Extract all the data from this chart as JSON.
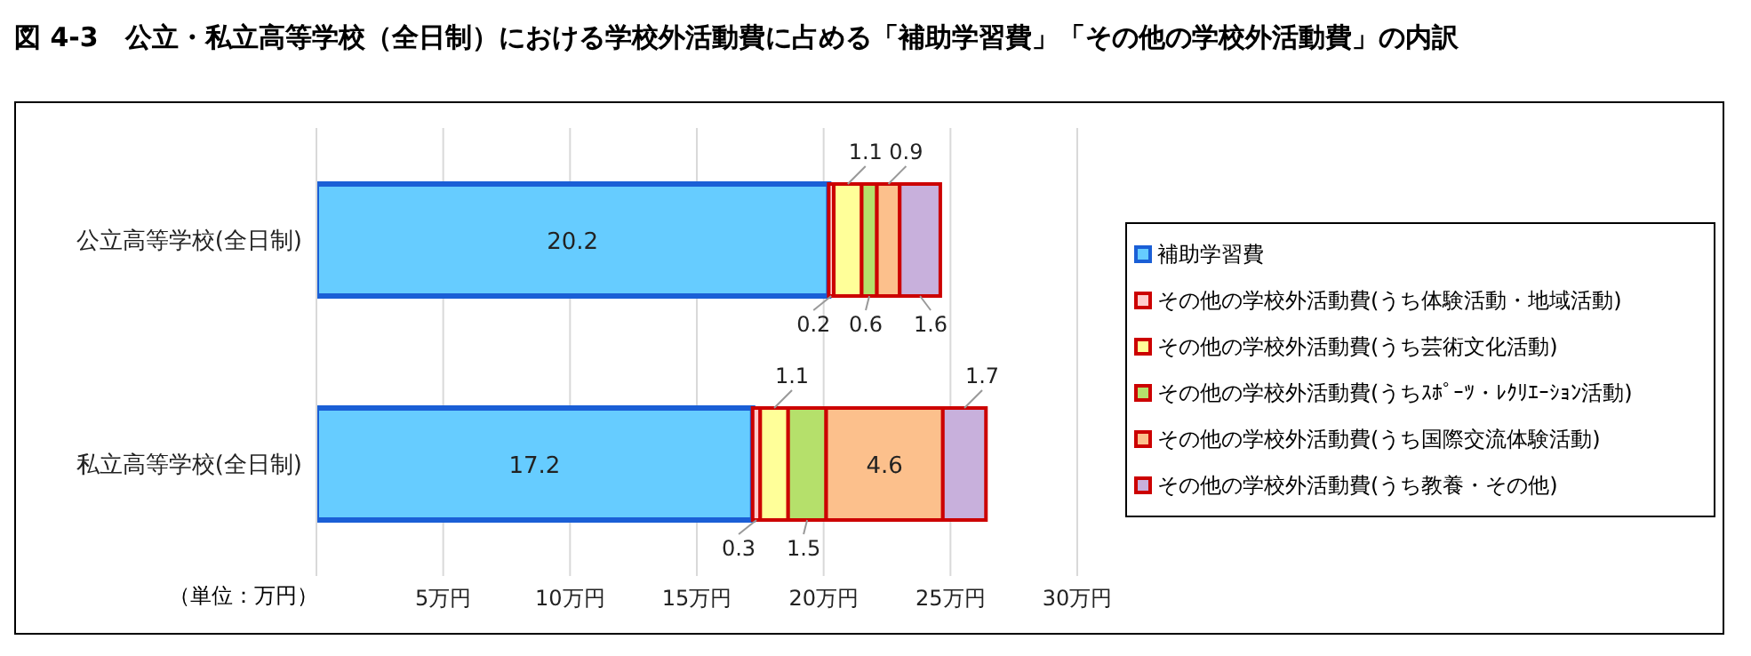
{
  "chart_data": {
    "type": "bar",
    "orientation": "horizontal",
    "stacked": true,
    "title": "図 4-3　公立・私立高等学校（全日制）における学校外活動費に占める「補助学習費」「その他の学校外活動費」の内訳",
    "categories": [
      "公立高等学校(全日制)",
      "私立高等学校(全日制)"
    ],
    "series": [
      {
        "name": "補助学習費",
        "color": "#66ccff",
        "values": [
          20.2,
          17.2
        ]
      },
      {
        "name": "その他の学校外活動費(うち体験活動・地域活動)",
        "color": "#ffcccc",
        "values": [
          0.2,
          0.3
        ]
      },
      {
        "name": "その他の学校外活動費(うち芸術文化活動)",
        "color": "#ffff99",
        "values": [
          1.1,
          1.1
        ]
      },
      {
        "name": "その他の学校外活動費(うちｽﾎﾟｰﾂ・ﾚｸﾘｴｰｼｮﾝ活動)",
        "color": "#b5e06b",
        "values": [
          0.6,
          1.5
        ]
      },
      {
        "name": "その他の学校外活動費(うち国際交流体験活動)",
        "color": "#fcc08c",
        "values": [
          0.9,
          4.6
        ]
      },
      {
        "name": "その他の学校外活動費(うち教養・その他)",
        "color": "#c8b0dc",
        "values": [
          1.6,
          1.7
        ]
      }
    ],
    "xlim": [
      0,
      30
    ],
    "xticks": [
      {
        "value": 0,
        "label": null
      },
      {
        "value": 5,
        "label": "5万円"
      },
      {
        "value": 10,
        "label": "10万円"
      },
      {
        "value": 15,
        "label": "15万円"
      },
      {
        "value": 20,
        "label": "20万円"
      },
      {
        "value": 25,
        "label": "25万円"
      },
      {
        "value": 30,
        "label": "30万円"
      }
    ],
    "grid": "x",
    "legend": "right",
    "data_labels": true,
    "annotations": [
      "（単位：万円）"
    ]
  }
}
